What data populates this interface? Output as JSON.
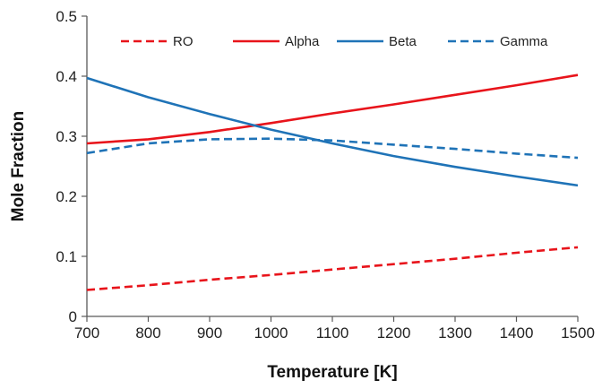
{
  "chart_data": {
    "type": "line",
    "title": "",
    "xlabel": "Temperature [K]",
    "ylabel": "Mole Fraction",
    "xlim": [
      700,
      1500
    ],
    "ylim": [
      0,
      0.5
    ],
    "x_ticks": [
      700,
      800,
      900,
      1000,
      1100,
      1200,
      1300,
      1400,
      1500
    ],
    "y_ticks": [
      0,
      0.1,
      0.2,
      0.3,
      0.4,
      0.5
    ],
    "grid": false,
    "legend_position": "top",
    "x": [
      700,
      800,
      900,
      1000,
      1100,
      1200,
      1300,
      1400,
      1500
    ],
    "series": [
      {
        "name": "RO",
        "color": "#e8141b",
        "style": "dashed",
        "values": [
          0.044,
          0.052,
          0.061,
          0.069,
          0.078,
          0.087,
          0.096,
          0.106,
          0.115
        ]
      },
      {
        "name": "Alpha",
        "color": "#e8141b",
        "style": "solid",
        "values": [
          0.288,
          0.295,
          0.307,
          0.322,
          0.338,
          0.353,
          0.369,
          0.385,
          0.402
        ]
      },
      {
        "name": "Beta",
        "color": "#1f73b7",
        "style": "solid",
        "values": [
          0.397,
          0.365,
          0.337,
          0.311,
          0.288,
          0.267,
          0.249,
          0.233,
          0.218
        ]
      },
      {
        "name": "Gamma",
        "color": "#1f73b7",
        "style": "dashed",
        "values": [
          0.272,
          0.288,
          0.295,
          0.296,
          0.293,
          0.286,
          0.279,
          0.271,
          0.264
        ]
      }
    ]
  }
}
